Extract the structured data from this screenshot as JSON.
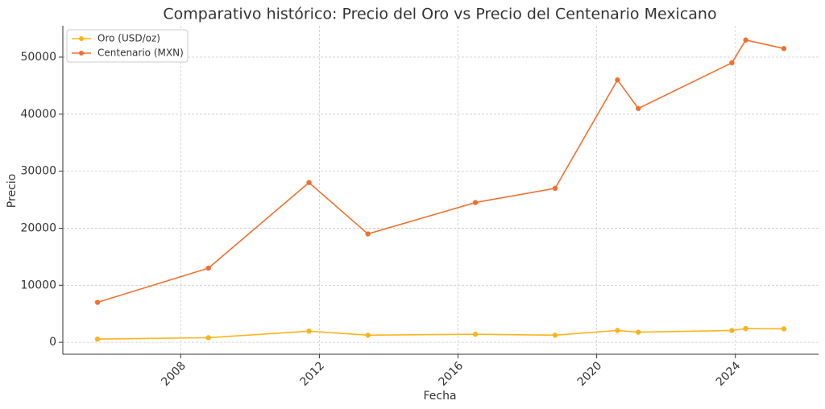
{
  "chart_data": {
    "type": "line",
    "title": "Comparativo histórico: Precio del Oro vs Precio del Centenario Mexicano",
    "x_label": "Fecha",
    "y_label": "Precio",
    "x": [
      2005.6,
      2008.8,
      2011.7,
      2013.4,
      2016.5,
      2018.8,
      2020.6,
      2021.2,
      2023.9,
      2024.3,
      2025.4
    ],
    "series": [
      {
        "name": "Oro (USD/oz)",
        "color": "#fbb41c",
        "values": [
          560,
          800,
          1950,
          1250,
          1400,
          1250,
          2070,
          1770,
          2070,
          2400,
          2350
        ]
      },
      {
        "name": "Centenario (MXN)",
        "color": "#ef7030",
        "values": [
          7000,
          13000,
          28000,
          19000,
          24500,
          27000,
          46000,
          41000,
          49000,
          53000,
          51500
        ]
      }
    ],
    "xlim": [
      2004.6,
      2026.4
    ],
    "xticks": [
      2008,
      2012,
      2016,
      2020,
      2024
    ],
    "ylim": [
      -2100,
      55500
    ],
    "yticks": [
      0,
      10000,
      20000,
      30000,
      40000,
      50000
    ],
    "grid": true,
    "legend": "upper-left"
  }
}
